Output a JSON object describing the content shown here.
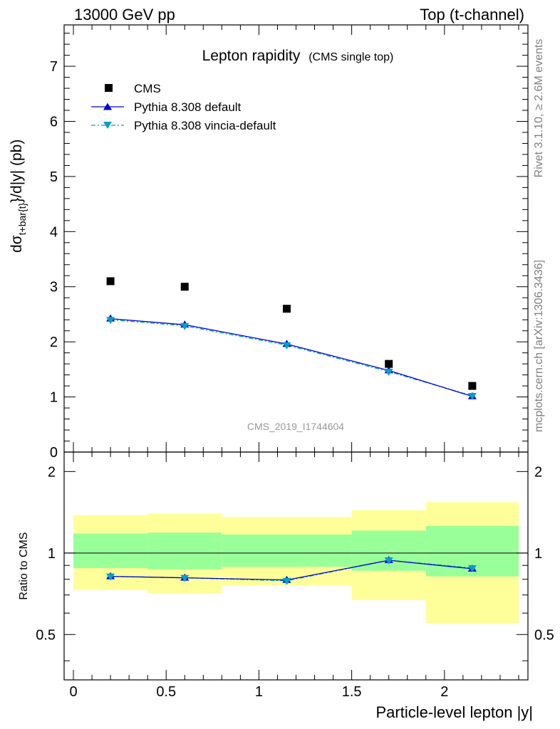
{
  "header": {
    "left": "13000 GeV pp",
    "right": "Top (t-channel)"
  },
  "side_texts": {
    "rivet": "Rivet 3.1.10, ≥ 2.6M events",
    "mcplots": "mcplots.cern.ch [arXiv:1306.3436]"
  },
  "main_title": {
    "main": "Lepton rapidity",
    "sub": "(CMS single top)"
  },
  "watermark": "CMS_2019_I1744604",
  "ylabel_top": {
    "d": "d",
    "sigma": "σ",
    "sub": "t+bar{t}",
    "rest": "}/d|y|  (pb)"
  },
  "ylabel_bottom": "Ratio to CMS",
  "xlabel": "Particle-level lepton |y|",
  "legend": [
    {
      "label": "CMS"
    },
    {
      "label": "Pythia 8.308 default"
    },
    {
      "label": "Pythia 8.308 vincia-default"
    }
  ],
  "colors": {
    "data": "#000000",
    "default": "#0000cc",
    "vincia": "#00a0c8",
    "band_inner": "#99ff99",
    "band_outer": "#ffff99",
    "side_text": "#808080",
    "watermark": "#999999"
  },
  "chart_data": [
    {
      "type": "scatter",
      "panel": "main",
      "x": [
        0.2,
        0.6,
        1.15,
        1.7,
        2.15
      ],
      "xlim": [
        -0.05,
        2.45
      ],
      "ylim": [
        0,
        7.75
      ],
      "yticks": [
        "0",
        "1",
        "2",
        "3",
        "4",
        "5",
        "6",
        "7"
      ],
      "xticks": [
        "0",
        "0.5",
        "1",
        "1.5",
        "2"
      ],
      "series": [
        {
          "name": "CMS",
          "values": [
            3.1,
            3.0,
            2.6,
            1.6,
            1.2
          ]
        },
        {
          "name": "Pythia 8.308 default",
          "values": [
            2.42,
            2.31,
            1.96,
            1.48,
            1.01
          ]
        },
        {
          "name": "Pythia 8.308 vincia-default",
          "values": [
            2.4,
            2.29,
            1.94,
            1.46,
            1.02
          ]
        }
      ]
    },
    {
      "type": "line",
      "panel": "ratio",
      "x": [
        0.2,
        0.6,
        1.15,
        1.7,
        2.15
      ],
      "ylim": [
        0.34,
        2.36
      ],
      "yticks": [
        "0.5",
        "1",
        "2"
      ],
      "bins": [
        [
          0,
          0.4
        ],
        [
          0.4,
          0.8
        ],
        [
          0.8,
          1.5
        ],
        [
          1.5,
          1.9
        ],
        [
          1.9,
          2.4
        ]
      ],
      "band_inner": [
        [
          0.88,
          1.18
        ],
        [
          0.87,
          1.19
        ],
        [
          0.89,
          1.17
        ],
        [
          0.86,
          1.21
        ],
        [
          0.82,
          1.26
        ]
      ],
      "band_outer": [
        [
          0.73,
          1.38
        ],
        [
          0.71,
          1.4
        ],
        [
          0.76,
          1.36
        ],
        [
          0.67,
          1.44
        ],
        [
          0.55,
          1.54
        ]
      ],
      "series": [
        {
          "name": "Pythia 8.308 default",
          "values": [
            0.82,
            0.81,
            0.795,
            0.94,
            0.875
          ]
        },
        {
          "name": "Pythia 8.308 vincia-default",
          "values": [
            0.82,
            0.81,
            0.79,
            0.94,
            0.88
          ]
        }
      ]
    }
  ]
}
